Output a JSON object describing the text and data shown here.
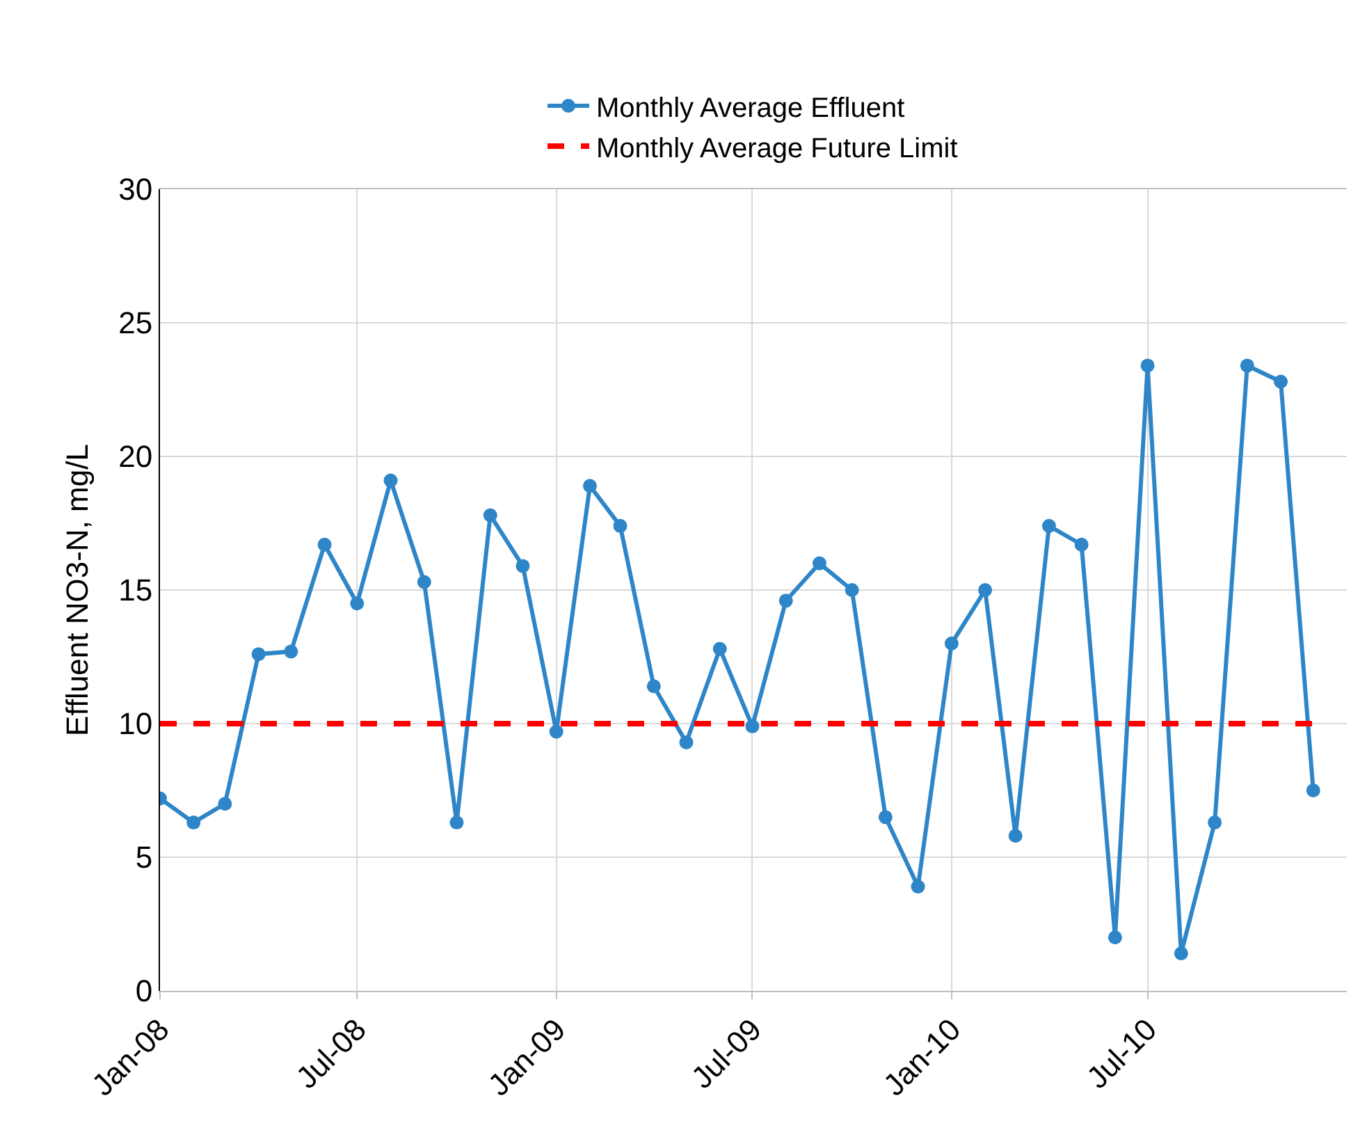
{
  "chart_data": {
    "type": "line",
    "ylabel": "Effluent NO3-N, mg/L",
    "x": [
      "2008-01",
      "2008-02",
      "2008-03",
      "2008-04",
      "2008-05",
      "2008-06",
      "2008-07",
      "2008-08",
      "2008-09",
      "2008-10",
      "2008-11",
      "2008-12",
      "2009-01",
      "2009-02",
      "2009-03",
      "2009-04",
      "2009-05",
      "2009-06",
      "2009-07",
      "2009-08",
      "2009-09",
      "2009-10",
      "2009-11",
      "2009-12",
      "2010-01",
      "2010-02",
      "2010-03",
      "2010-04",
      "2010-05",
      "2010-06",
      "2010-07",
      "2010-08",
      "2010-09",
      "2010-10",
      "2010-11",
      "2010-12"
    ],
    "series": [
      {
        "name": "Monthly Average Effluent",
        "color": "#2e86c8",
        "marker": "circle",
        "line_style": "solid",
        "values": [
          7.2,
          6.3,
          7.0,
          12.6,
          12.7,
          16.7,
          14.5,
          19.1,
          15.3,
          6.3,
          17.8,
          15.9,
          9.7,
          18.9,
          17.4,
          11.4,
          9.3,
          12.8,
          9.9,
          14.6,
          16.0,
          15.0,
          6.5,
          3.9,
          13.0,
          15.0,
          5.8,
          17.4,
          16.7,
          2.0,
          23.4,
          1.4,
          6.3,
          23.4,
          22.8,
          7.5
        ]
      },
      {
        "name": "Monthly Average Future Limit",
        "color": "#ff0000",
        "marker": "none",
        "line_style": "dashed",
        "values": [
          10,
          10,
          10,
          10,
          10,
          10,
          10,
          10,
          10,
          10,
          10,
          10,
          10,
          10,
          10,
          10,
          10,
          10,
          10,
          10,
          10,
          10,
          10,
          10,
          10,
          10,
          10,
          10,
          10,
          10,
          10,
          10,
          10,
          10,
          10,
          10
        ]
      }
    ],
    "xlim": [
      "2008-01",
      "2011-01"
    ],
    "xticks": [
      {
        "value": "2008-01",
        "label": "Jan-08"
      },
      {
        "value": "2008-07",
        "label": "Jul-08"
      },
      {
        "value": "2009-01",
        "label": "Jan-09"
      },
      {
        "value": "2009-07",
        "label": "Jul-09"
      },
      {
        "value": "2010-01",
        "label": "Jan-10"
      },
      {
        "value": "2010-07",
        "label": "Jul-10"
      }
    ],
    "ylim": [
      0,
      30
    ],
    "yticks": [
      0,
      5,
      10,
      15,
      20,
      25,
      30
    ],
    "grid": true,
    "legend": "top"
  }
}
